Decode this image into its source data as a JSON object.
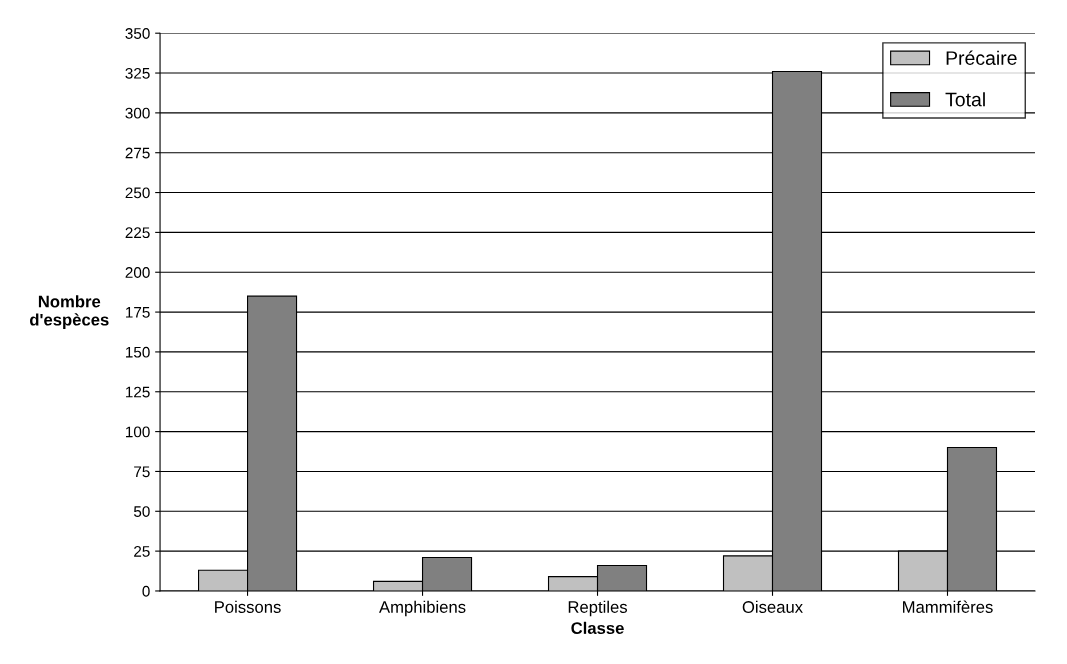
{
  "chart_data": {
    "type": "bar",
    "xlabel": "Classe",
    "ylabel": "Nombre\nd'espèces",
    "categories": [
      "Poissons",
      "Amphibiens",
      "Reptiles",
      "Oiseaux",
      "Mammifères"
    ],
    "series": [
      {
        "name": "Précaire",
        "color": "#c0c0c0",
        "values": [
          13,
          6,
          9,
          22,
          25
        ]
      },
      {
        "name": "Total",
        "color": "#808080",
        "values": [
          185,
          21,
          16,
          326,
          90
        ]
      }
    ],
    "ylim": [
      0,
      350
    ],
    "yticks": [
      0,
      25,
      50,
      75,
      100,
      125,
      150,
      175,
      200,
      225,
      250,
      275,
      300,
      325,
      350
    ],
    "grid": "y",
    "legend": "top right"
  }
}
